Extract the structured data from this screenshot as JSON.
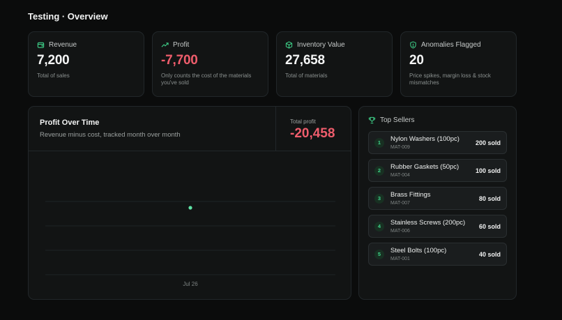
{
  "page": {
    "title": "Testing · Overview"
  },
  "stats": [
    {
      "label": "Revenue",
      "value": "7,200",
      "sub": "Total of sales",
      "icon": "wallet-icon",
      "negative": false
    },
    {
      "label": "Profit",
      "value": "-7,700",
      "sub": "Only counts the cost of the materials you've sold",
      "icon": "trending-up-icon",
      "negative": true
    },
    {
      "label": "Inventory Value",
      "value": "27,658",
      "sub": "Total of materials",
      "icon": "box-icon",
      "negative": false
    },
    {
      "label": "Anomalies Flagged",
      "value": "20",
      "sub": "Price spikes, margin loss & stock mismatches",
      "icon": "shield-alert-icon",
      "negative": false
    }
  ],
  "profit_chart": {
    "title": "Profit Over Time",
    "subtitle": "Revenue minus cost, tracked month over month",
    "total_label": "Total profit",
    "total_value": "-20,458",
    "x_label": "Jul 26"
  },
  "top_sellers": {
    "title": "Top Sellers",
    "icon": "trophy-icon",
    "items": [
      {
        "rank": "1",
        "name": "Nylon Washers (100pc)",
        "code": "MAT-009",
        "sold": "200 sold"
      },
      {
        "rank": "2",
        "name": "Rubber Gaskets (50pc)",
        "code": "MAT-004",
        "sold": "100 sold"
      },
      {
        "rank": "3",
        "name": "Brass Fittings",
        "code": "MAT-007",
        "sold": "80 sold"
      },
      {
        "rank": "4",
        "name": "Stainless Screws (200pc)",
        "code": "MAT-006",
        "sold": "60 sold"
      },
      {
        "rank": "5",
        "name": "Steel Bolts (100pc)",
        "code": "MAT-001",
        "sold": "40 sold"
      }
    ]
  },
  "colors": {
    "accent": "#3fd38a",
    "negative": "#ef5d6c",
    "background": "#0b0c0c",
    "card": "#121414"
  }
}
